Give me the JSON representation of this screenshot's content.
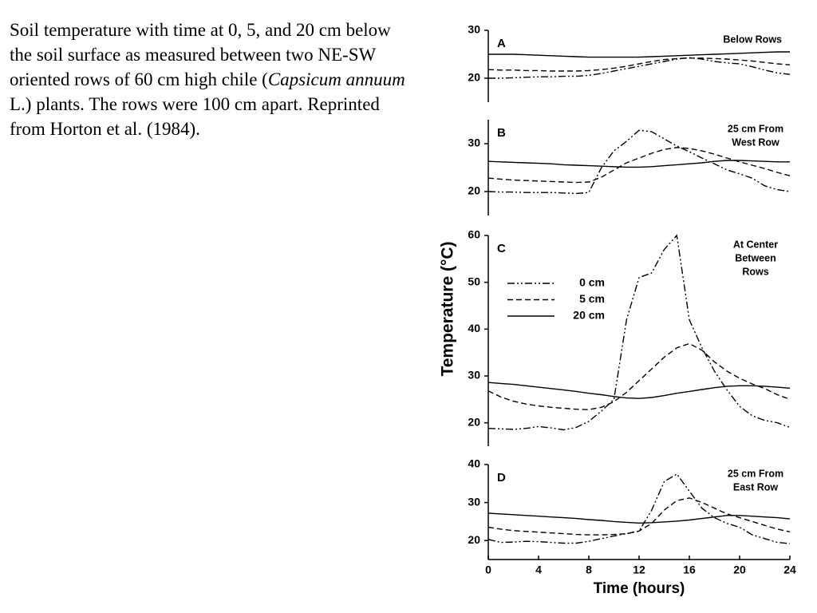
{
  "caption": {
    "before": "Soil temperature with time at 0, 5, and 20 cm below the soil surface as measured between two NE-SW oriented rows of 60 cm high chile (",
    "italic": "Capsicum annuum",
    "after": " L.) plants.  The rows were 100 cm apart.  Reprinted from Horton et al. (1984)."
  },
  "chart_data": [
    {
      "type": "line",
      "label": "A",
      "annotation": [
        "Below Rows"
      ],
      "x": [
        0,
        1,
        2,
        3,
        4,
        5,
        6,
        7,
        8,
        9,
        10,
        11,
        12,
        13,
        14,
        15,
        16,
        17,
        18,
        19,
        20,
        21,
        22,
        23,
        24
      ],
      "xlim": [
        0,
        24
      ],
      "ylim": [
        15,
        30
      ],
      "yticks": [
        20,
        30
      ],
      "series": [
        {
          "color": "#000000",
          "dash": "dashdot",
          "values": [
            20.0,
            20.0,
            20.1,
            20.2,
            20.3,
            20.3,
            20.4,
            20.4,
            20.6,
            21.0,
            21.5,
            22.0,
            22.5,
            23.0,
            23.5,
            24.0,
            24.3,
            24.0,
            23.5,
            23.2,
            23.0,
            22.4,
            21.7,
            21.1,
            20.8
          ]
        },
        {
          "color": "#000000",
          "dash": "dash",
          "values": [
            21.8,
            21.7,
            21.7,
            21.6,
            21.6,
            21.5,
            21.5,
            21.5,
            21.6,
            21.8,
            22.1,
            22.5,
            23.0,
            23.5,
            23.9,
            24.1,
            24.2,
            24.2,
            24.1,
            24.0,
            23.8,
            23.6,
            23.3,
            23.0,
            22.8
          ]
        },
        {
          "color": "#000000",
          "dash": "solid",
          "values": [
            25.0,
            25.0,
            25.0,
            24.9,
            24.8,
            24.7,
            24.6,
            24.5,
            24.4,
            24.4,
            24.4,
            24.4,
            24.4,
            24.5,
            24.6,
            24.7,
            24.8,
            24.9,
            25.0,
            25.1,
            25.2,
            25.3,
            25.4,
            25.5,
            25.5
          ]
        }
      ]
    },
    {
      "type": "line",
      "label": "B",
      "annotation": [
        "25 cm From",
        "West Row"
      ],
      "x": [
        0,
        1,
        2,
        3,
        4,
        5,
        6,
        7,
        8,
        9,
        10,
        11,
        12,
        13,
        14,
        15,
        16,
        17,
        18,
        19,
        20,
        21,
        22,
        23,
        24
      ],
      "xlim": [
        0,
        24
      ],
      "ylim": [
        15,
        35
      ],
      "yticks": [
        20,
        30
      ],
      "series": [
        {
          "color": "#000000",
          "dash": "dashdot",
          "values": [
            20.0,
            19.9,
            19.9,
            19.8,
            19.8,
            19.8,
            19.7,
            19.6,
            19.8,
            25.0,
            28.5,
            30.5,
            32.8,
            32.5,
            31.0,
            29.5,
            28.3,
            27.0,
            25.8,
            24.5,
            23.7,
            22.8,
            21.2,
            20.4,
            20.0
          ]
        },
        {
          "color": "#000000",
          "dash": "dash",
          "values": [
            22.8,
            22.6,
            22.4,
            22.3,
            22.2,
            22.1,
            22.0,
            21.9,
            22.0,
            23.0,
            24.5,
            26.0,
            27.0,
            28.0,
            28.8,
            29.2,
            29.0,
            28.5,
            27.8,
            27.0,
            26.2,
            25.5,
            24.8,
            24.0,
            23.3
          ]
        },
        {
          "color": "#000000",
          "dash": "solid",
          "values": [
            26.3,
            26.2,
            26.1,
            26.0,
            25.9,
            25.8,
            25.6,
            25.5,
            25.4,
            25.3,
            25.2,
            25.1,
            25.1,
            25.2,
            25.4,
            25.6,
            25.8,
            26.0,
            26.3,
            26.5,
            26.5,
            26.4,
            26.3,
            26.2,
            26.2
          ]
        }
      ]
    },
    {
      "type": "line",
      "label": "C",
      "annotation": [
        "At Center",
        "Between",
        "Rows"
      ],
      "ylabel": "Temperature (°C)",
      "x": [
        0,
        1,
        2,
        3,
        4,
        5,
        6,
        7,
        8,
        9,
        10,
        11,
        12,
        13,
        14,
        15,
        16,
        17,
        18,
        19,
        20,
        21,
        22,
        23,
        24
      ],
      "xlim": [
        0,
        24
      ],
      "ylim": [
        15,
        60
      ],
      "yticks": [
        20,
        30,
        40,
        50,
        60
      ],
      "series": [
        {
          "name": "0 cm",
          "color": "#000000",
          "dash": "dashdot",
          "values": [
            18.8,
            18.7,
            18.6,
            18.8,
            19.2,
            18.9,
            18.5,
            19.0,
            20.3,
            22.5,
            25.0,
            42.0,
            51.0,
            52.0,
            57.0,
            60.0,
            42.0,
            36.0,
            31.0,
            27.0,
            23.5,
            21.5,
            20.5,
            20.0,
            19.0
          ]
        },
        {
          "name": "5 cm",
          "color": "#000000",
          "dash": "dash",
          "values": [
            26.8,
            25.5,
            24.6,
            24.0,
            23.6,
            23.3,
            23.1,
            22.9,
            22.8,
            23.3,
            24.5,
            26.5,
            29.0,
            31.5,
            34.0,
            36.0,
            36.9,
            35.5,
            33.0,
            31.0,
            29.5,
            28.3,
            27.3,
            26.0,
            25.0
          ]
        },
        {
          "name": "20 cm",
          "color": "#000000",
          "dash": "solid",
          "values": [
            28.6,
            28.4,
            28.2,
            27.9,
            27.6,
            27.3,
            27.0,
            26.7,
            26.3,
            26.0,
            25.6,
            25.3,
            25.2,
            25.4,
            25.8,
            26.3,
            26.7,
            27.1,
            27.5,
            27.8,
            27.9,
            27.9,
            27.8,
            27.6,
            27.4
          ]
        }
      ]
    },
    {
      "type": "line",
      "label": "D",
      "annotation": [
        "25 cm From",
        "East Row"
      ],
      "xlabel": "Time (hours)",
      "x": [
        0,
        1,
        2,
        3,
        4,
        5,
        6,
        7,
        8,
        9,
        10,
        11,
        12,
        13,
        14,
        15,
        16,
        17,
        18,
        19,
        20,
        21,
        22,
        23,
        24
      ],
      "xlim": [
        0,
        24
      ],
      "xticks": [
        0,
        4,
        8,
        12,
        16,
        20,
        24
      ],
      "ylim": [
        15,
        40
      ],
      "yticks": [
        20,
        30,
        40
      ],
      "series": [
        {
          "color": "#000000",
          "dash": "dashdot",
          "values": [
            20.3,
            19.5,
            19.6,
            19.8,
            19.7,
            19.5,
            19.3,
            19.3,
            19.8,
            20.5,
            21.2,
            21.8,
            22.5,
            28.0,
            35.5,
            37.5,
            33.0,
            28.5,
            26.0,
            24.5,
            23.5,
            21.5,
            20.5,
            19.5,
            19.2
          ]
        },
        {
          "color": "#000000",
          "dash": "dash",
          "values": [
            23.5,
            23.0,
            22.6,
            22.4,
            22.2,
            22.0,
            21.8,
            21.6,
            21.5,
            21.5,
            21.6,
            21.8,
            22.5,
            24.5,
            28.0,
            30.5,
            31.2,
            30.0,
            28.5,
            27.0,
            26.0,
            25.0,
            24.0,
            23.0,
            22.3
          ]
        },
        {
          "color": "#000000",
          "dash": "solid",
          "values": [
            27.2,
            27.0,
            26.8,
            26.6,
            26.4,
            26.2,
            26.0,
            25.8,
            25.5,
            25.3,
            25.0,
            24.8,
            24.6,
            24.7,
            24.9,
            25.1,
            25.4,
            25.8,
            26.2,
            26.6,
            26.6,
            26.4,
            26.2,
            26.0,
            25.7
          ]
        }
      ]
    }
  ]
}
